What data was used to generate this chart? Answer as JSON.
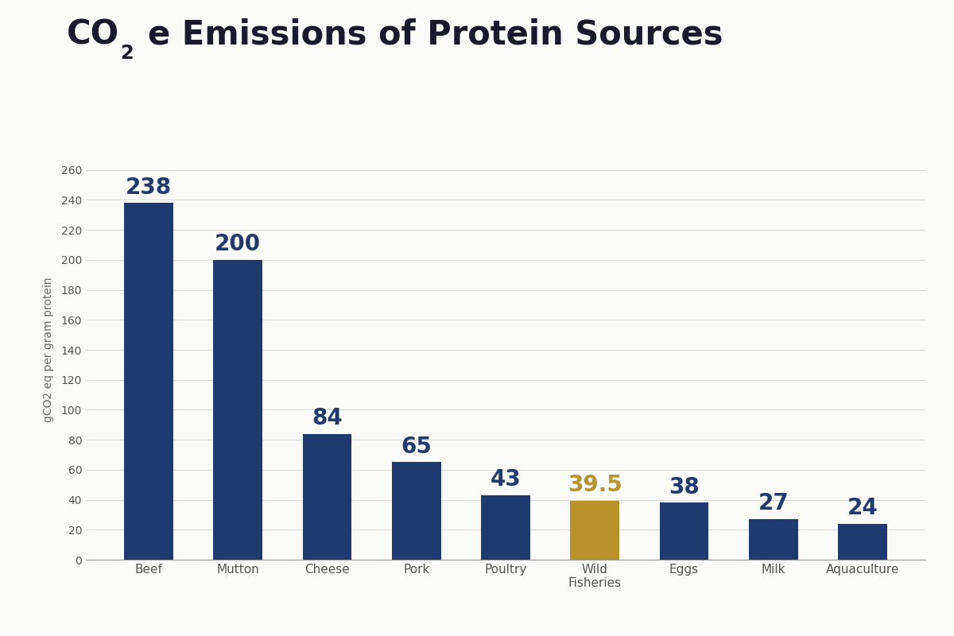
{
  "categories": [
    "Beef",
    "Mutton",
    "Cheese",
    "Pork",
    "Poultry",
    "Wild\nFisheries",
    "Eggs",
    "Milk",
    "Aquaculture"
  ],
  "values": [
    238,
    200,
    84,
    65,
    43,
    39.5,
    38,
    27,
    24
  ],
  "bar_colors": [
    "#1e3a6e",
    "#1e3a6e",
    "#1e3a6e",
    "#1e3a6e",
    "#1e3a6e",
    "#b8922a",
    "#1e3a6e",
    "#1e3a6e",
    "#1e3a6e"
  ],
  "value_colors": [
    "#1e3a6e",
    "#1e3a6e",
    "#1e3a6e",
    "#1e3a6e",
    "#1e3a6e",
    "#b8922a",
    "#1e3a6e",
    "#1e3a6e",
    "#1e3a6e"
  ],
  "ylabel": "gCO2 eq per gram protein",
  "ylim": [
    0,
    280
  ],
  "yticks": [
    0,
    20,
    40,
    60,
    80,
    100,
    120,
    140,
    160,
    180,
    200,
    220,
    240,
    260
  ],
  "background_color": "#fafaf8",
  "title_color": "#1a1a2e",
  "label_fontsize": 11,
  "value_fontsize": 20,
  "title_fontsize": 30,
  "ylabel_fontsize": 10,
  "tick_fontsize": 10,
  "bar_width": 0.55
}
